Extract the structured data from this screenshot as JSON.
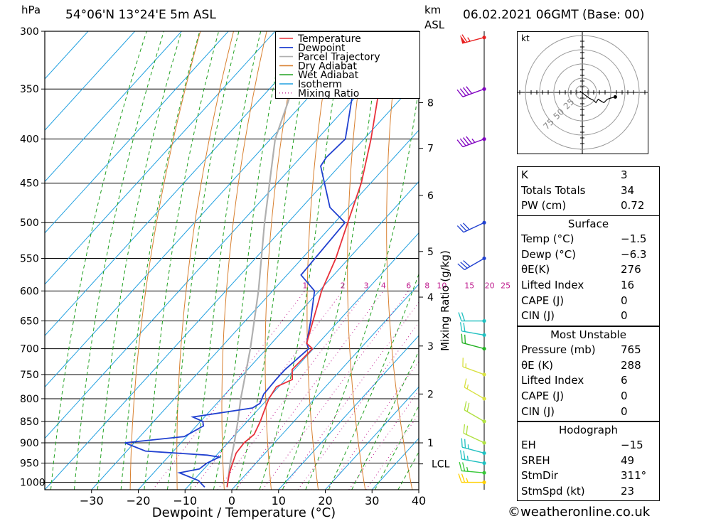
{
  "header": {
    "pressure_unit": "hPa",
    "location": "54°06'N  13°24'E  5m  ASL",
    "km_unit": "km",
    "km_asl": "ASL",
    "datetime": "06.02.2021  06GMT  (Base: 00)"
  },
  "colors": {
    "temperature": "#e8303a",
    "dewpoint": "#2040d0",
    "parcel": "#b0b0b0",
    "dry_adiabat": "#d88030",
    "wet_adiabat": "#20a020",
    "isotherm": "#20a0e0",
    "mixing_ratio": "#c02090"
  },
  "legend": [
    "Temperature",
    "Dewpoint",
    "Parcel Trajectory",
    "Dry Adiabat",
    "Wet Adiabat",
    "Isotherm",
    "Mixing Ratio"
  ],
  "chart_data": {
    "type": "line",
    "title": "54°06'N 13°24'E 5m ASL 06.02.2021 06GMT (Base: 00)",
    "xlabel": "Dewpoint / Temperature (°C)",
    "ylabel": "hPa",
    "xlim": [
      -40,
      40
    ],
    "ylim": [
      1020,
      300
    ],
    "y_scale": "log",
    "grid": true,
    "legend_position": "top-right",
    "x_ticks": [
      "−30",
      "−20",
      "−10",
      "0",
      "10",
      "20",
      "30",
      "40"
    ],
    "pressure_ticks": [
      "300",
      "350",
      "400",
      "450",
      "500",
      "550",
      "600",
      "650",
      "700",
      "750",
      "800",
      "850",
      "900",
      "950",
      "1000"
    ],
    "km_ticks": [
      {
        "p": 363,
        "label": "8"
      },
      {
        "p": 410,
        "label": "7"
      },
      {
        "p": 465,
        "label": "6"
      },
      {
        "p": 540,
        "label": "5"
      },
      {
        "p": 610,
        "label": "4"
      },
      {
        "p": 695,
        "label": "3"
      },
      {
        "p": 790,
        "label": "2"
      },
      {
        "p": 900,
        "label": "1"
      },
      {
        "p": 952,
        "label": "LCL"
      }
    ],
    "mixing_ratio_axis_label": "Mixing Ratio (g/kg)",
    "mixing_ratio_labels": [
      "1",
      "2",
      "3",
      "4",
      "6",
      "8",
      "10",
      "15",
      "20",
      "25"
    ],
    "series": [
      {
        "name": "Temperature",
        "p": [
          1013,
          1000,
          975,
          950,
          925,
          900,
          880,
          850,
          825,
          800,
          775,
          760,
          740,
          700,
          690,
          650,
          600,
          550,
          500,
          450,
          400,
          350,
          300
        ],
        "t": [
          -1.5,
          -2.3,
          -3.8,
          -5.0,
          -6.2,
          -6.5,
          -6.0,
          -7.2,
          -8.5,
          -9.8,
          -10.5,
          -8.5,
          -10.5,
          -10.2,
          -12.5,
          -15.5,
          -19.5,
          -22.8,
          -27.2,
          -32.0,
          -38.5,
          -46.5,
          -55.0
        ]
      },
      {
        "name": "Dewpoint",
        "p": [
          1013,
          995,
          975,
          965,
          950,
          935,
          930,
          920,
          900,
          885,
          860,
          850,
          840,
          820,
          810,
          790,
          760,
          740,
          700,
          690,
          650,
          600,
          575,
          500,
          480,
          430,
          420,
          400,
          350,
          330,
          320,
          300
        ],
        "t": [
          -6.3,
          -9.0,
          -14.5,
          -11.0,
          -10.5,
          -9.0,
          -12.0,
          -26.0,
          -32.0,
          -20.5,
          -18.5,
          -19.5,
          -22.5,
          -11.5,
          -10.8,
          -11.8,
          -12.0,
          -12.0,
          -11.0,
          -12.5,
          -16.0,
          -21.0,
          -27.0,
          -27.8,
          -34.0,
          -44.0,
          -44.5,
          -44.0,
          -52.0,
          -55.0,
          -50.0,
          -56.0
        ]
      },
      {
        "name": "Parcel Trajectory",
        "p": [
          1013,
          952,
          900,
          850,
          800,
          700,
          600,
          500,
          400,
          300
        ],
        "t": [
          -1.5,
          -5.4,
          -8.6,
          -12.0,
          -15.8,
          -23.5,
          -33.0,
          -45.0,
          -59.0,
          -72.0
        ]
      }
    ],
    "wind_barbs": [
      {
        "p": 1000,
        "dir": 270,
        "kt": 25,
        "color": "#ffd000"
      },
      {
        "p": 975,
        "dir": 275,
        "kt": 25,
        "color": "#38c838"
      },
      {
        "p": 950,
        "dir": 280,
        "kt": 25,
        "color": "#20c0c0"
      },
      {
        "p": 925,
        "dir": 285,
        "kt": 25,
        "color": "#20c0c0"
      },
      {
        "p": 900,
        "dir": 295,
        "kt": 20,
        "color": "#b0e040"
      },
      {
        "p": 850,
        "dir": 300,
        "kt": 20,
        "color": "#b0e040"
      },
      {
        "p": 800,
        "dir": 300,
        "kt": 15,
        "color": "#d8e040"
      },
      {
        "p": 750,
        "dir": 290,
        "kt": 15,
        "color": "#d8e040"
      },
      {
        "p": 700,
        "dir": 285,
        "kt": 20,
        "color": "#20b020"
      },
      {
        "p": 675,
        "dir": 280,
        "kt": 20,
        "color": "#20c0c0"
      },
      {
        "p": 650,
        "dir": 270,
        "kt": 20,
        "color": "#20c0c0"
      },
      {
        "p": 550,
        "dir": 240,
        "kt": 30,
        "color": "#2040d0"
      },
      {
        "p": 500,
        "dir": 245,
        "kt": 30,
        "color": "#2040d0"
      },
      {
        "p": 400,
        "dir": 250,
        "kt": 45,
        "color": "#8000c0"
      },
      {
        "p": 350,
        "dir": 250,
        "kt": 40,
        "color": "#8000c0"
      },
      {
        "p": 305,
        "dir": 255,
        "kt": 65,
        "color": "#e82020"
      }
    ]
  },
  "hodograph": {
    "unit": "kt",
    "ring_labels": [
      "25",
      "50",
      "75"
    ],
    "points": [
      [
        -2,
        1
      ],
      [
        2,
        -2
      ],
      [
        6,
        -5
      ],
      [
        10,
        -7
      ],
      [
        12,
        -9
      ],
      [
        14,
        -6
      ],
      [
        17,
        -8
      ],
      [
        19,
        -9
      ],
      [
        22,
        -6
      ],
      [
        25,
        -5
      ],
      [
        29,
        -4
      ]
    ]
  },
  "indices": [
    {
      "label": "K",
      "value": "3"
    },
    {
      "label": "Totals Totals",
      "value": "34"
    },
    {
      "label": "PW (cm)",
      "value": "0.72"
    }
  ],
  "surface": {
    "title": "Surface",
    "rows": [
      {
        "label": "Temp (°C)",
        "value": "−1.5"
      },
      {
        "label": "Dewp (°C)",
        "value": "−6.3"
      },
      {
        "label": "θE(K)",
        "value": "276"
      },
      {
        "label": "Lifted Index",
        "value": "16"
      },
      {
        "label": "CAPE (J)",
        "value": "0"
      },
      {
        "label": "CIN (J)",
        "value": "0"
      }
    ]
  },
  "most_unstable": {
    "title": "Most Unstable",
    "rows": [
      {
        "label": "Pressure (mb)",
        "value": "765"
      },
      {
        "label": "θE (K)",
        "value": "288"
      },
      {
        "label": "Lifted Index",
        "value": "6"
      },
      {
        "label": "CAPE (J)",
        "value": "0"
      },
      {
        "label": "CIN (J)",
        "value": "0"
      }
    ]
  },
  "hodograph_params": {
    "title": "Hodograph",
    "rows": [
      {
        "label": "EH",
        "value": "−15"
      },
      {
        "label": "SREH",
        "value": "49"
      },
      {
        "label": "StmDir",
        "value": "311°"
      },
      {
        "label": "StmSpd (kt)",
        "value": "23"
      }
    ]
  },
  "footer": "©weatheronline.co.uk"
}
